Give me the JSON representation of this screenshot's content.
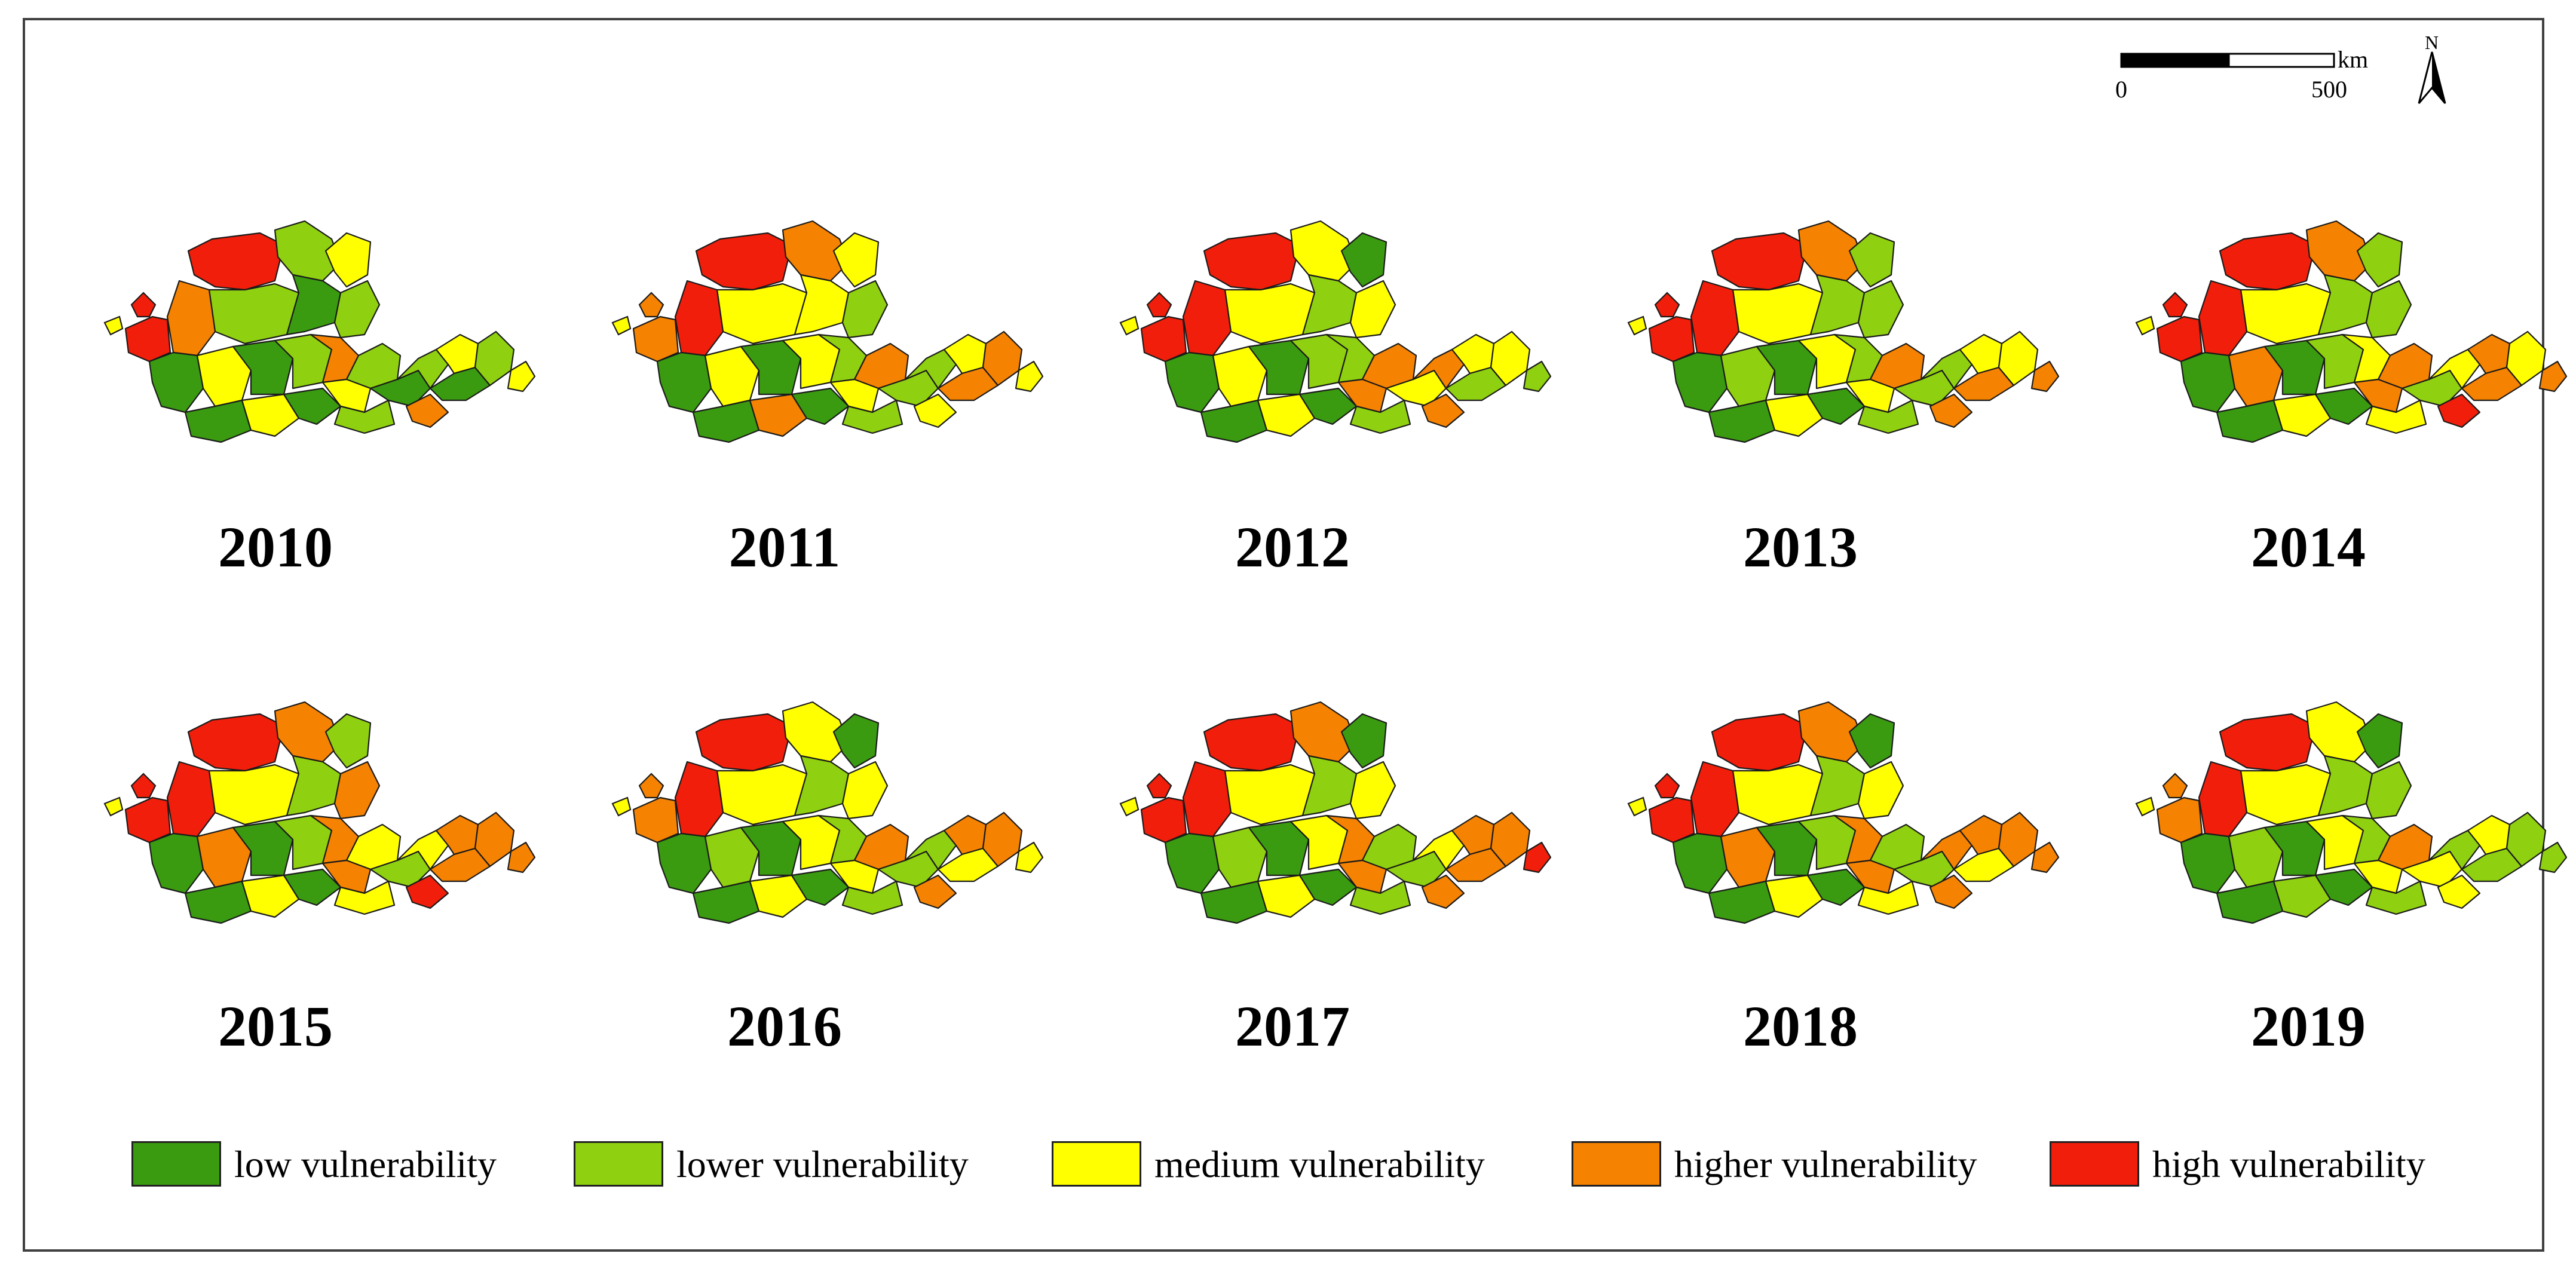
{
  "figure": {
    "years_row1": [
      "2010",
      "2011",
      "2012",
      "2013",
      "2014"
    ],
    "years_row2": [
      "2015",
      "2016",
      "2017",
      "2018",
      "2019"
    ]
  },
  "scale_bar": {
    "unit": "km",
    "start_label": "0",
    "end_label": "500"
  },
  "north_arrow": {
    "label": "N",
    "icon": "north-arrow-icon"
  },
  "legend": [
    {
      "label": "low vulnerability",
      "color": "#3a9a10"
    },
    {
      "label": "lower vulnerability",
      "color": "#8fd010"
    },
    {
      "label": "medium vulnerability",
      "color": "#ffff00"
    },
    {
      "label": "higher vulnerability",
      "color": "#f58200"
    },
    {
      "label": "high vulnerability",
      "color": "#f01e0a"
    }
  ],
  "year_class_pattern": {
    "2010": [
      4,
      1,
      2,
      1,
      3,
      0,
      4,
      1,
      0,
      2,
      0,
      1,
      3,
      1,
      0,
      2,
      0,
      2,
      1,
      0,
      1,
      2,
      0,
      1,
      2,
      3
    ],
    "2011": [
      4,
      3,
      2,
      2,
      4,
      2,
      3,
      1,
      0,
      2,
      0,
      2,
      1,
      3,
      0,
      3,
      0,
      2,
      1,
      1,
      1,
      2,
      3,
      3,
      2,
      2
    ],
    "2012": [
      4,
      2,
      0,
      2,
      4,
      1,
      4,
      2,
      0,
      2,
      0,
      1,
      1,
      3,
      0,
      2,
      0,
      3,
      1,
      2,
      3,
      2,
      1,
      2,
      1,
      3
    ],
    "2013": [
      4,
      3,
      1,
      2,
      4,
      1,
      4,
      1,
      0,
      1,
      0,
      2,
      1,
      3,
      0,
      2,
      0,
      2,
      1,
      1,
      1,
      2,
      3,
      2,
      3,
      3
    ],
    "2014": [
      4,
      3,
      1,
      2,
      4,
      1,
      4,
      1,
      0,
      3,
      0,
      1,
      2,
      3,
      0,
      2,
      0,
      3,
      2,
      1,
      2,
      3,
      3,
      2,
      3,
      4
    ],
    "2015": [
      4,
      3,
      1,
      2,
      4,
      1,
      4,
      3,
      0,
      3,
      0,
      1,
      3,
      2,
      0,
      2,
      0,
      3,
      2,
      1,
      2,
      3,
      3,
      3,
      3,
      4
    ],
    "2016": [
      4,
      2,
      0,
      2,
      4,
      1,
      3,
      2,
      0,
      1,
      0,
      2,
      1,
      3,
      0,
      2,
      0,
      2,
      1,
      1,
      1,
      3,
      2,
      3,
      2,
      3
    ],
    "2017": [
      4,
      3,
      0,
      2,
      4,
      1,
      4,
      2,
      0,
      1,
      0,
      2,
      3,
      1,
      0,
      2,
      0,
      3,
      1,
      1,
      2,
      3,
      3,
      3,
      4,
      3
    ],
    "2018": [
      4,
      3,
      0,
      2,
      4,
      1,
      4,
      2,
      0,
      3,
      0,
      1,
      3,
      1,
      0,
      2,
      0,
      3,
      2,
      1,
      3,
      3,
      2,
      3,
      3,
      3
    ],
    "2019": [
      4,
      2,
      0,
      2,
      4,
      1,
      3,
      1,
      0,
      1,
      0,
      2,
      1,
      3,
      0,
      1,
      0,
      2,
      1,
      2,
      1,
      2,
      1,
      1,
      1,
      2
    ]
  }
}
